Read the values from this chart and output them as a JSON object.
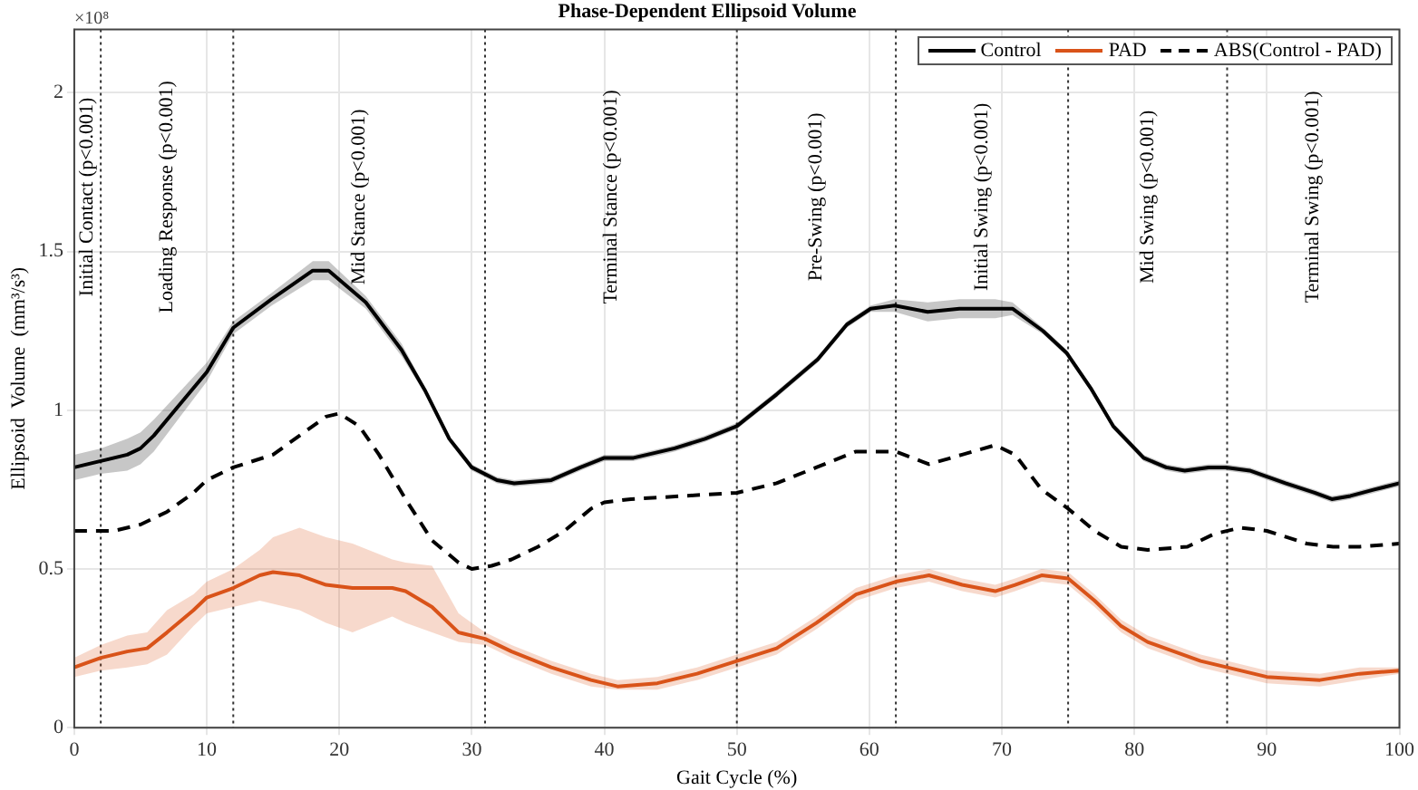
{
  "chart_data": {
    "type": "line",
    "title": "Phase-Dependent Ellipsoid Volume",
    "xlabel": "Gait Cycle (%)",
    "ylabel": "Ellipsoid  Volume  (mm³/s³)",
    "annotations": [
      "×10⁸",
      "Initial Contact (p<0.001)",
      "Loading Response (p<0.001)",
      "Mid Stance (p<0.001)",
      "Terminal Stance (p<0.001)",
      "Pre-Swing (p<0.001)",
      "Initial Swing (p<0.001)",
      "Mid Swing (p<0.001)",
      "Terminal Swing (p<0.001)"
    ],
    "xlim": [
      0,
      100
    ],
    "xticks": [
      0,
      10,
      20,
      30,
      40,
      50,
      60,
      70,
      80,
      90,
      100
    ],
    "ylim": [
      0,
      2.2
    ],
    "yticks": [
      0,
      0.5,
      1,
      1.5,
      2
    ],
    "grid": true,
    "legend": "top right",
    "marker": "none",
    "series": [
      {
        "name": "Control",
        "color": "#000000",
        "line_style": "solid",
        "x": [
          0,
          2,
          4,
          5,
          6,
          8,
          10,
          12,
          14.9,
          18,
          19.2,
          22,
          24.7,
          26.5,
          28.3,
          30,
          31.9,
          33.2,
          36,
          38.2,
          40,
          42.2,
          45.3,
          47.6,
          50,
          53,
          56.1,
          58.3,
          60.1,
          61.9,
          64.4,
          66.8,
          69.5,
          70.8,
          73.1,
          74.9,
          76.7,
          78.4,
          80.7,
          82.4,
          83.8,
          85.6,
          86.9,
          88.7,
          91.4,
          93.6,
          94.9,
          96.3,
          98.1,
          100
        ],
        "values": [
          0.82,
          0.84,
          0.86,
          0.88,
          0.92,
          1.02,
          1.12,
          1.26,
          1.35,
          1.44,
          1.44,
          1.34,
          1.19,
          1.06,
          0.91,
          0.82,
          0.78,
          0.77,
          0.78,
          0.82,
          0.85,
          0.85,
          0.88,
          0.91,
          0.95,
          1.05,
          1.16,
          1.27,
          1.32,
          1.33,
          1.31,
          1.32,
          1.32,
          1.32,
          1.25,
          1.18,
          1.07,
          0.95,
          0.85,
          0.82,
          0.81,
          0.82,
          0.82,
          0.81,
          0.77,
          0.74,
          0.72,
          0.73,
          0.75,
          0.77
        ],
        "lower": [
          0.78,
          0.8,
          0.81,
          0.83,
          0.87,
          0.98,
          1.09,
          1.24,
          1.33,
          1.41,
          1.41,
          1.32,
          1.17,
          1.05,
          0.9,
          0.81,
          0.77,
          0.76,
          0.77,
          0.81,
          0.84,
          0.84,
          0.87,
          0.9,
          0.94,
          1.04,
          1.15,
          1.26,
          1.31,
          1.31,
          1.28,
          1.29,
          1.29,
          1.3,
          1.24,
          1.17,
          1.06,
          0.94,
          0.84,
          0.81,
          0.8,
          0.81,
          0.81,
          0.8,
          0.76,
          0.73,
          0.71,
          0.72,
          0.74,
          0.76
        ],
        "upper": [
          0.86,
          0.88,
          0.91,
          0.93,
          0.97,
          1.06,
          1.15,
          1.28,
          1.37,
          1.47,
          1.47,
          1.36,
          1.21,
          1.07,
          0.92,
          0.83,
          0.79,
          0.78,
          0.79,
          0.83,
          0.86,
          0.86,
          0.89,
          0.92,
          0.96,
          1.06,
          1.17,
          1.28,
          1.33,
          1.35,
          1.34,
          1.35,
          1.35,
          1.34,
          1.26,
          1.19,
          1.08,
          0.96,
          0.86,
          0.83,
          0.82,
          0.83,
          0.83,
          0.82,
          0.78,
          0.75,
          0.73,
          0.74,
          0.76,
          0.78
        ]
      },
      {
        "name": "PAD",
        "color": "#d95319",
        "line_style": "solid",
        "x": [
          0,
          2,
          4,
          5.5,
          7,
          9,
          10,
          12,
          14,
          15,
          17,
          19,
          21,
          24,
          25,
          27,
          29,
          31,
          33,
          36,
          39,
          41,
          44,
          47,
          50,
          53,
          56,
          59,
          62,
          64.5,
          67,
          69.5,
          71,
          73,
          75,
          77,
          79,
          81,
          83,
          85,
          87,
          90,
          94,
          97,
          100
        ],
        "values": [
          0.19,
          0.22,
          0.24,
          0.25,
          0.3,
          0.37,
          0.41,
          0.44,
          0.48,
          0.49,
          0.48,
          0.45,
          0.44,
          0.44,
          0.43,
          0.38,
          0.3,
          0.28,
          0.24,
          0.19,
          0.15,
          0.13,
          0.14,
          0.17,
          0.21,
          0.25,
          0.33,
          0.42,
          0.46,
          0.48,
          0.45,
          0.43,
          0.45,
          0.48,
          0.47,
          0.4,
          0.32,
          0.27,
          0.24,
          0.21,
          0.19,
          0.16,
          0.15,
          0.17,
          0.18
        ],
        "lower": [
          0.16,
          0.18,
          0.19,
          0.2,
          0.23,
          0.32,
          0.36,
          0.38,
          0.4,
          0.39,
          0.37,
          0.33,
          0.3,
          0.35,
          0.33,
          0.3,
          0.27,
          0.26,
          0.22,
          0.17,
          0.13,
          0.12,
          0.12,
          0.15,
          0.19,
          0.23,
          0.31,
          0.4,
          0.44,
          0.46,
          0.43,
          0.41,
          0.43,
          0.46,
          0.45,
          0.38,
          0.3,
          0.25,
          0.22,
          0.19,
          0.17,
          0.14,
          0.13,
          0.15,
          0.17
        ],
        "upper": [
          0.22,
          0.26,
          0.29,
          0.3,
          0.37,
          0.42,
          0.46,
          0.5,
          0.56,
          0.6,
          0.63,
          0.6,
          0.58,
          0.53,
          0.52,
          0.51,
          0.36,
          0.3,
          0.26,
          0.21,
          0.17,
          0.15,
          0.16,
          0.19,
          0.23,
          0.27,
          0.35,
          0.44,
          0.48,
          0.5,
          0.47,
          0.45,
          0.47,
          0.5,
          0.49,
          0.42,
          0.34,
          0.29,
          0.26,
          0.23,
          0.21,
          0.18,
          0.17,
          0.19,
          0.19
        ]
      },
      {
        "name": "ABS(Control - PAD)",
        "color": "#000000",
        "line_style": "dashed",
        "x": [
          0,
          2,
          3,
          5,
          7,
          9,
          10,
          12,
          15,
          17,
          19,
          20,
          21.5,
          23,
          25,
          27,
          29,
          30,
          31.5,
          33,
          35,
          37,
          39,
          40,
          42,
          46,
          50,
          53,
          56,
          59,
          62,
          64.5,
          67,
          69.5,
          71,
          73,
          75,
          77,
          79,
          81,
          84,
          86,
          88,
          90,
          93,
          95,
          97,
          100
        ],
        "values": [
          0.62,
          0.62,
          0.62,
          0.64,
          0.68,
          0.74,
          0.78,
          0.82,
          0.86,
          0.92,
          0.98,
          0.99,
          0.95,
          0.86,
          0.72,
          0.59,
          0.52,
          0.5,
          0.51,
          0.53,
          0.57,
          0.62,
          0.69,
          0.71,
          0.72,
          0.73,
          0.74,
          0.77,
          0.82,
          0.87,
          0.87,
          0.83,
          0.86,
          0.89,
          0.86,
          0.75,
          0.69,
          0.62,
          0.57,
          0.56,
          0.57,
          0.61,
          0.63,
          0.62,
          0.58,
          0.57,
          0.57,
          0.58
        ]
      }
    ],
    "ref_lines": [
      {
        "axis": "x",
        "value": 2,
        "line_style": "dotted"
      },
      {
        "axis": "x",
        "value": 12,
        "line_style": "dotted"
      },
      {
        "axis": "x",
        "value": 31,
        "line_style": "dotted"
      },
      {
        "axis": "x",
        "value": 50,
        "line_style": "dotted"
      },
      {
        "axis": "x",
        "value": 62,
        "line_style": "dotted"
      },
      {
        "axis": "x",
        "value": 75,
        "line_style": "dotted"
      },
      {
        "axis": "x",
        "value": 87,
        "line_style": "dotted"
      }
    ]
  }
}
